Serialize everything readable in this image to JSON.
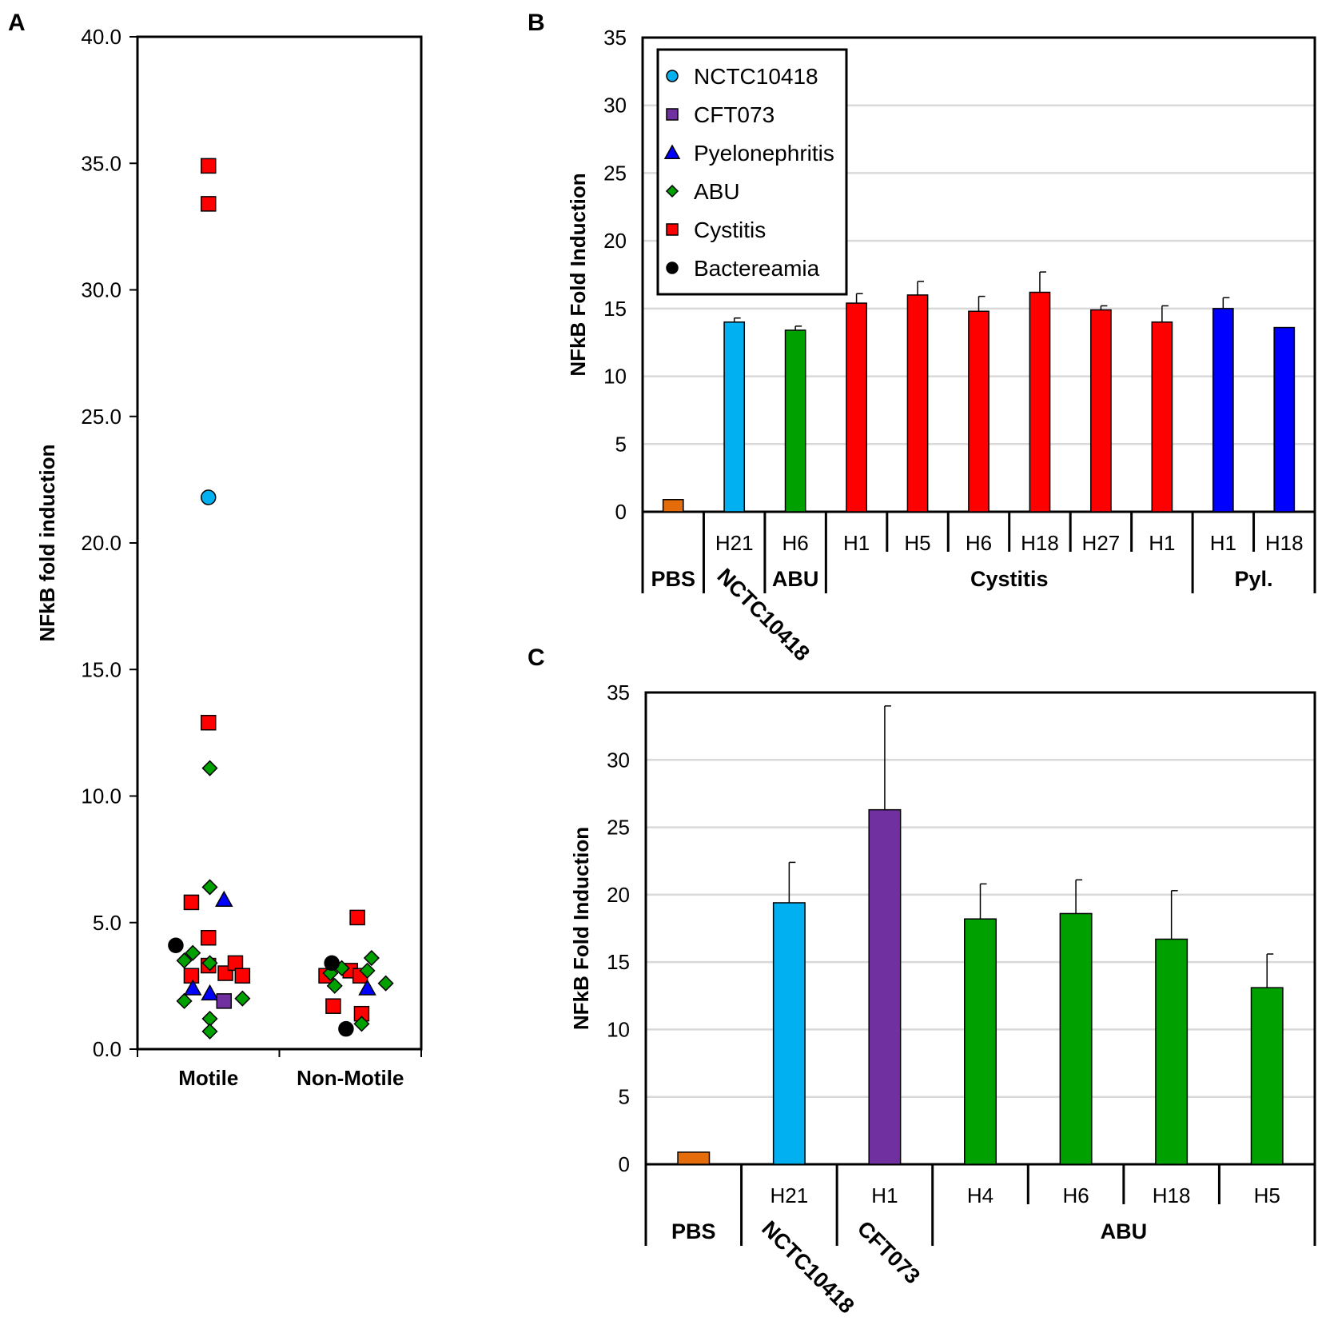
{
  "colors": {
    "NCTC10418": "#00b0f0",
    "CFT073": "#7030a0",
    "Pyelonephritis": "#0000ff",
    "ABU": "#00a000",
    "Cystitis": "#ff0000",
    "Bactereamia": "#000000",
    "PBS": "#e46c0a",
    "grid": "#d9d9d9"
  },
  "chart_data": [
    {
      "panel": "A",
      "type": "scatter",
      "ylabel": "NFkB fold induction",
      "ylim": [
        0,
        40
      ],
      "yticks": [
        "0.0",
        "5.0",
        "10.0",
        "15.0",
        "20.0",
        "25.0",
        "30.0",
        "35.0",
        "40.0"
      ],
      "categories": [
        "Motile",
        "Non-Motile"
      ],
      "series": [
        {
          "name": "Cystitis",
          "shape": "square",
          "points": [
            {
              "x": 1,
              "y": 34.9
            },
            {
              "x": 1,
              "y": 33.4
            },
            {
              "x": 1,
              "y": 12.9
            },
            {
              "x": 0.88,
              "y": 5.8
            },
            {
              "x": 1,
              "y": 4.4
            },
            {
              "x": 0.88,
              "y": 2.9
            },
            {
              "x": 1,
              "y": 3.3
            },
            {
              "x": 1.12,
              "y": 3.0
            },
            {
              "x": 1.19,
              "y": 3.4
            },
            {
              "x": 1.24,
              "y": 2.9
            },
            {
              "x": 2.05,
              "y": 5.2
            },
            {
              "x": 1.83,
              "y": 2.9
            },
            {
              "x": 2.0,
              "y": 3.1
            },
            {
              "x": 2.07,
              "y": 2.9
            },
            {
              "x": 1.88,
              "y": 1.7
            },
            {
              "x": 2.08,
              "y": 1.4
            }
          ]
        },
        {
          "name": "NCTC10418",
          "shape": "circle",
          "points": [
            {
              "x": 1,
              "y": 21.8
            }
          ]
        },
        {
          "name": "ABU",
          "shape": "diamond",
          "points": [
            {
              "x": 1.01,
              "y": 11.1
            },
            {
              "x": 1.01,
              "y": 6.4
            },
            {
              "x": 0.89,
              "y": 3.8
            },
            {
              "x": 0.83,
              "y": 3.5
            },
            {
              "x": 1.01,
              "y": 3.4
            },
            {
              "x": 0.83,
              "y": 1.9
            },
            {
              "x": 1.24,
              "y": 2.0
            },
            {
              "x": 1.01,
              "y": 1.2
            },
            {
              "x": 1.01,
              "y": 0.7
            },
            {
              "x": 1.86,
              "y": 3.0
            },
            {
              "x": 1.94,
              "y": 3.2
            },
            {
              "x": 1.89,
              "y": 2.5
            },
            {
              "x": 2.15,
              "y": 3.6
            },
            {
              "x": 2.12,
              "y": 3.1
            },
            {
              "x": 2.25,
              "y": 2.6
            },
            {
              "x": 2.08,
              "y": 1.0
            }
          ]
        },
        {
          "name": "Pyelonephritis",
          "shape": "triangle",
          "points": [
            {
              "x": 1.11,
              "y": 5.9
            },
            {
              "x": 0.89,
              "y": 2.4
            },
            {
              "x": 1.01,
              "y": 2.2
            },
            {
              "x": 2.12,
              "y": 2.4
            }
          ]
        },
        {
          "name": "CFT073",
          "shape": "square",
          "points": [
            {
              "x": 1.11,
              "y": 1.9
            }
          ]
        },
        {
          "name": "Bactereamia",
          "shape": "circle",
          "points": [
            {
              "x": 0.77,
              "y": 4.1
            },
            {
              "x": 1.87,
              "y": 3.4
            },
            {
              "x": 1.97,
              "y": 0.8
            }
          ]
        }
      ]
    },
    {
      "panel": "B",
      "type": "bar",
      "ylabel": "NFkB Fold Induction",
      "ylim": [
        0,
        35
      ],
      "yticks": [
        "0",
        "5",
        "10",
        "15",
        "20",
        "25",
        "30",
        "35"
      ],
      "categories": [
        "",
        "H21",
        "H6",
        "H1",
        "H5",
        "H6",
        "H18",
        "H27",
        "H1",
        "H1",
        "H18"
      ],
      "values": [
        0.9,
        14.0,
        13.4,
        15.4,
        16.0,
        14.8,
        16.2,
        14.9,
        14.0,
        15.0,
        13.6
      ],
      "errors": [
        0,
        0.3,
        0.3,
        0.7,
        1.0,
        1.1,
        1.5,
        0.3,
        1.2,
        0.8,
        0
      ],
      "bar_colors": [
        "PBS",
        "NCTC10418",
        "ABU",
        "Cystitis",
        "Cystitis",
        "Cystitis",
        "Cystitis",
        "Cystitis",
        "Cystitis",
        "Pyelonephritis",
        "Pyelonephritis"
      ],
      "groups": [
        {
          "label": "PBS",
          "start": 0,
          "end": 0,
          "angled": false
        },
        {
          "label": "NCTC10418",
          "start": 1,
          "end": 1,
          "angled": true
        },
        {
          "label": "ABU",
          "start": 2,
          "end": 2,
          "angled": false
        },
        {
          "label": "Cystitis",
          "start": 3,
          "end": 8,
          "angled": false
        },
        {
          "label": "Pyl.",
          "start": 9,
          "end": 10,
          "angled": false
        }
      ],
      "legend": [
        {
          "label": "NCTC10418",
          "shape": "circle",
          "color": "NCTC10418"
        },
        {
          "label": "CFT073",
          "shape": "square",
          "color": "CFT073"
        },
        {
          "label": "Pyelonephritis",
          "shape": "triangle",
          "color": "Pyelonephritis"
        },
        {
          "label": "ABU",
          "shape": "diamond",
          "color": "ABU"
        },
        {
          "label": "Cystitis",
          "shape": "square",
          "color": "Cystitis"
        },
        {
          "label": "Bactereamia",
          "shape": "circle",
          "color": "Bactereamia"
        }
      ]
    },
    {
      "panel": "C",
      "type": "bar",
      "ylabel": "NFkB Fold Induction",
      "ylim": [
        0,
        35
      ],
      "yticks": [
        "0",
        "5",
        "10",
        "15",
        "20",
        "25",
        "30",
        "35"
      ],
      "categories": [
        "",
        "H21",
        "H1",
        "H4",
        "H6",
        "H18",
        "H5"
      ],
      "values": [
        0.9,
        19.4,
        26.3,
        18.2,
        18.6,
        16.7,
        13.1
      ],
      "errors": [
        0,
        3.0,
        7.7,
        2.6,
        2.5,
        3.6,
        2.5
      ],
      "bar_colors": [
        "PBS",
        "NCTC10418",
        "CFT073",
        "ABU",
        "ABU",
        "ABU",
        "ABU"
      ],
      "groups": [
        {
          "label": "PBS",
          "start": 0,
          "end": 0,
          "angled": false
        },
        {
          "label": "NCTC10418",
          "start": 1,
          "end": 1,
          "angled": true
        },
        {
          "label": "CFT073",
          "start": 2,
          "end": 2,
          "angled": true
        },
        {
          "label": "ABU",
          "start": 3,
          "end": 6,
          "angled": false
        }
      ]
    }
  ]
}
